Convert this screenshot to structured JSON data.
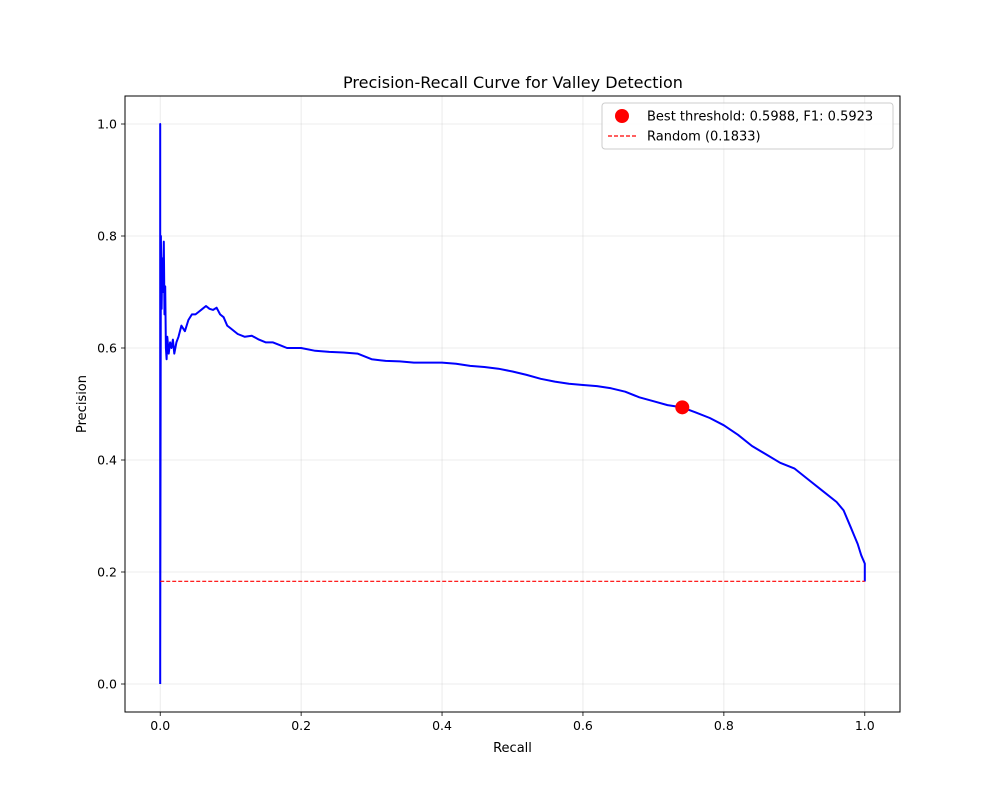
{
  "chart_data": {
    "type": "line",
    "title": "Precision-Recall Curve for Valley Detection",
    "xlabel": "Recall",
    "ylabel": "Precision",
    "xlim": [
      -0.05,
      1.05
    ],
    "ylim": [
      -0.05,
      1.05
    ],
    "xticks": [
      0.0,
      0.2,
      0.4,
      0.6,
      0.8,
      1.0
    ],
    "xtick_labels": [
      "0.0",
      "0.2",
      "0.4",
      "0.6",
      "0.8",
      "1.0"
    ],
    "yticks": [
      0.0,
      0.2,
      0.4,
      0.6,
      0.8,
      1.0
    ],
    "ytick_labels": [
      "0.0",
      "0.2",
      "0.4",
      "0.6",
      "0.8",
      "1.0"
    ],
    "grid": true,
    "legend_position": "top-right",
    "colors": {
      "curve": "#0000ff",
      "best_point": "#ff0000",
      "random": "#ff0000"
    },
    "series": [
      {
        "kind": "curve",
        "x": [
          0.0,
          0.0,
          0.0,
          0.001,
          0.002,
          0.003,
          0.004,
          0.005,
          0.006,
          0.007,
          0.008,
          0.009,
          0.01,
          0.012,
          0.014,
          0.016,
          0.018,
          0.02,
          0.023,
          0.026,
          0.03,
          0.035,
          0.04,
          0.045,
          0.05,
          0.055,
          0.06,
          0.065,
          0.07,
          0.075,
          0.08,
          0.085,
          0.09,
          0.095,
          0.1,
          0.11,
          0.12,
          0.13,
          0.14,
          0.15,
          0.16,
          0.17,
          0.18,
          0.2,
          0.22,
          0.24,
          0.26,
          0.28,
          0.3,
          0.32,
          0.34,
          0.36,
          0.38,
          0.4,
          0.42,
          0.44,
          0.46,
          0.48,
          0.5,
          0.52,
          0.54,
          0.56,
          0.58,
          0.6,
          0.62,
          0.64,
          0.66,
          0.68,
          0.7,
          0.72,
          0.741,
          0.76,
          0.78,
          0.8,
          0.82,
          0.84,
          0.86,
          0.88,
          0.9,
          0.92,
          0.94,
          0.96,
          0.97,
          0.98,
          0.985,
          0.99,
          0.995,
          1.0,
          1.0
        ],
        "y": [
          0.0,
          1.0,
          0.05,
          0.8,
          0.67,
          0.76,
          0.7,
          0.79,
          0.66,
          0.71,
          0.6,
          0.58,
          0.62,
          0.59,
          0.61,
          0.6,
          0.615,
          0.59,
          0.61,
          0.62,
          0.64,
          0.63,
          0.65,
          0.66,
          0.66,
          0.665,
          0.67,
          0.675,
          0.67,
          0.668,
          0.672,
          0.66,
          0.655,
          0.64,
          0.635,
          0.625,
          0.62,
          0.622,
          0.615,
          0.61,
          0.61,
          0.605,
          0.6,
          0.6,
          0.595,
          0.593,
          0.592,
          0.59,
          0.58,
          0.577,
          0.576,
          0.574,
          0.574,
          0.574,
          0.572,
          0.568,
          0.566,
          0.563,
          0.558,
          0.552,
          0.545,
          0.54,
          0.536,
          0.534,
          0.532,
          0.528,
          0.522,
          0.512,
          0.505,
          0.498,
          0.494,
          0.485,
          0.475,
          0.462,
          0.445,
          0.425,
          0.41,
          0.395,
          0.385,
          0.365,
          0.345,
          0.325,
          0.31,
          0.28,
          0.265,
          0.25,
          0.23,
          0.215,
          0.183
        ]
      },
      {
        "kind": "point",
        "name": "Best threshold: 0.5988, F1: 0.5923",
        "x": 0.741,
        "y": 0.494
      },
      {
        "kind": "hline",
        "name": "Random (0.1833)",
        "x": [
          0.0,
          1.0
        ],
        "y": 0.1833
      }
    ]
  }
}
